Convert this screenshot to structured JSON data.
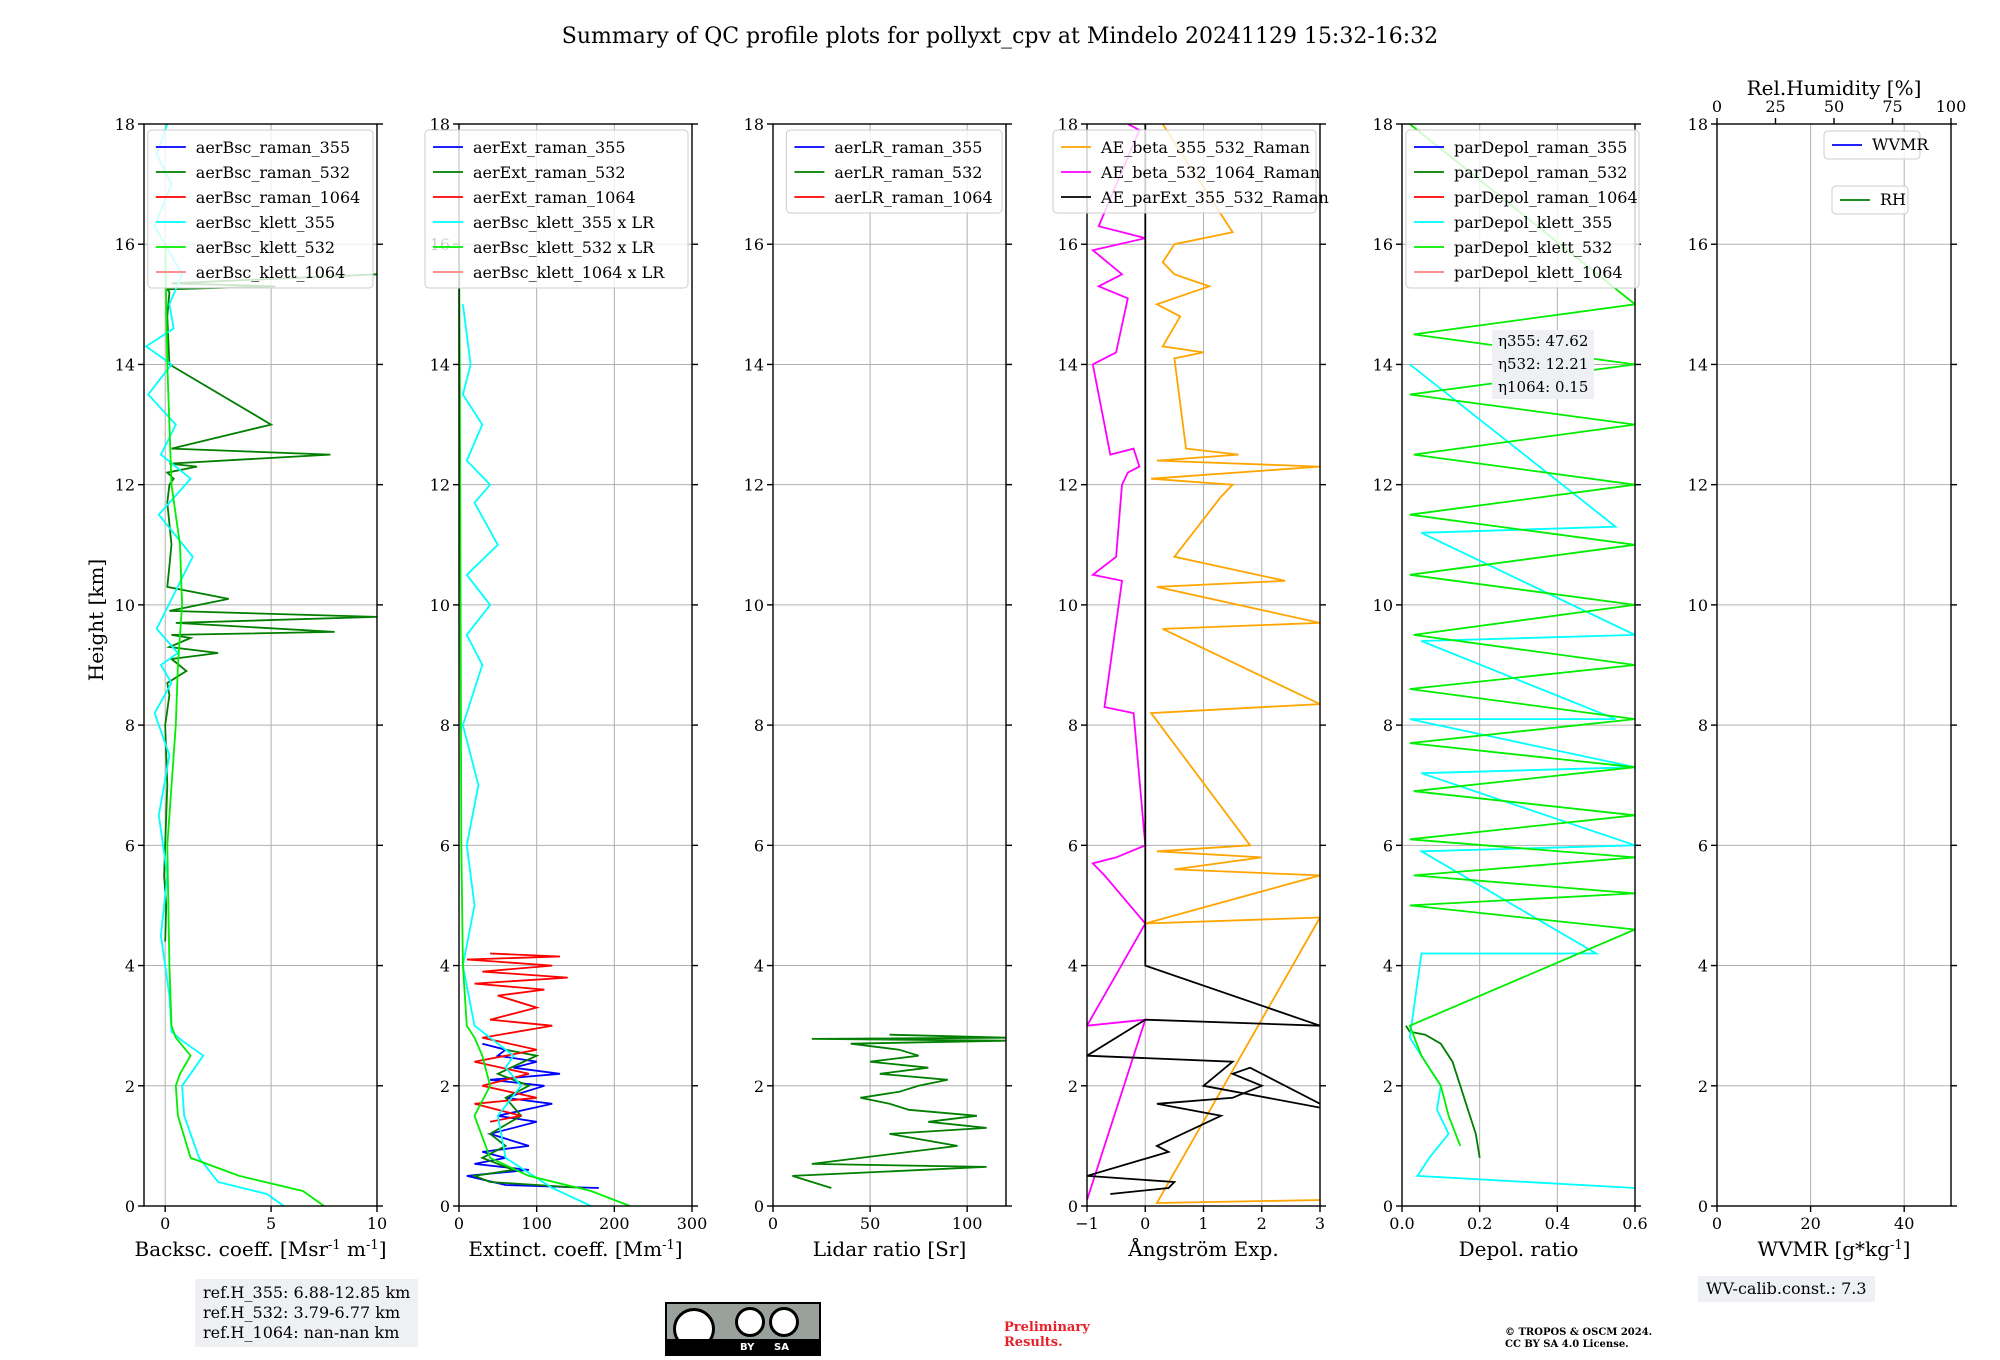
{
  "title": "Summary of QC profile plots for pollyxt_cpv at Mindelo 20241129 15:32-16:32",
  "chart_data": [
    {
      "type": "line",
      "id": "backscatter",
      "xlabel": "Backsc. coeff. [Msr$^{-1}$ m$^{-1}$]",
      "ylabel": "Height [km]",
      "xlim": [
        -1,
        10
      ],
      "ylim": [
        0,
        18
      ],
      "xticks": [
        "0",
        "5",
        "10"
      ],
      "yticks": [
        "0",
        "2",
        "4",
        "6",
        "8",
        "10",
        "12",
        "14",
        "16",
        "18"
      ],
      "grid": true,
      "legend_position": "top-right",
      "series": [
        {
          "name": "aerBsc_raman_355",
          "color": "#0000ff",
          "x": [],
          "y": []
        },
        {
          "name": "aerBsc_raman_532",
          "color": "#007f00",
          "x": [
            0,
            0.05,
            -0.05,
            0.1,
            0,
            0.2,
            0.1,
            1,
            0.3,
            2.5,
            0.2,
            1.2,
            0.3,
            8,
            0.5,
            10,
            0.2,
            3,
            0.1,
            0.3,
            0.1,
            0.2,
            0.4,
            0.1,
            1.5,
            0.2,
            7.8,
            0.3,
            5,
            0.2,
            0.1,
            0.2,
            0.1,
            5.2,
            0.3,
            10
          ],
          "y": [
            4.4,
            5.0,
            5.5,
            7.0,
            8.0,
            8.5,
            8.7,
            8.9,
            9.1,
            9.2,
            9.3,
            9.45,
            9.5,
            9.55,
            9.7,
            9.8,
            9.9,
            10.1,
            10.3,
            11.0,
            11.7,
            12.0,
            12.1,
            12.2,
            12.3,
            12.35,
            12.5,
            12.6,
            13.0,
            14.0,
            14.8,
            15.2,
            15.25,
            15.3,
            15.35,
            15.5
          ]
        },
        {
          "name": "aerBsc_raman_1064",
          "color": "#ff0000",
          "x": [],
          "y": []
        },
        {
          "name": "aerBsc_klett_355",
          "color": "#00ffff",
          "x": [
            5.6,
            4.8,
            2.5,
            1.6,
            0.9,
            0.8,
            1.2,
            1.8,
            0.8,
            0.3,
            0.2,
            -0.2,
            0.1,
            -0.3,
            0.2,
            -0.5,
            0.3,
            -0.2,
            0.6,
            -0.4,
            1.3,
            -0.3,
            1.2,
            -0.2,
            0.5,
            -0.8,
            0.3,
            -0.9,
            0.4,
            0.2,
            0.8,
            -0.5,
            0.3,
            -0.4,
            0.1
          ],
          "y": [
            0.0,
            0.2,
            0.4,
            0.8,
            1.5,
            2.0,
            2.2,
            2.5,
            2.75,
            2.9,
            3.5,
            4.5,
            5.5,
            6.5,
            7.5,
            8.2,
            8.7,
            9.0,
            9.2,
            9.6,
            10.8,
            11.5,
            12.1,
            12.5,
            13.0,
            13.5,
            14.0,
            14.3,
            14.6,
            15.0,
            15.5,
            16.3,
            17.0,
            17.5,
            18.0
          ]
        },
        {
          "name": "aerBsc_klett_532",
          "color": "#00ee00",
          "x": [
            7.5,
            6.5,
            3.5,
            1.2,
            0.6,
            0.5,
            0.7,
            1.2,
            0.5,
            0.3,
            0.2,
            0.1,
            0.5,
            0.6,
            0.8,
            0.7,
            0.3,
            0.1,
            0.0
          ],
          "y": [
            0.0,
            0.25,
            0.5,
            0.8,
            1.5,
            2.0,
            2.2,
            2.5,
            2.8,
            3.0,
            4.0,
            6.0,
            8.0,
            9.0,
            10.0,
            11.0,
            12.0,
            14.0,
            16.0
          ]
        },
        {
          "name": "aerBsc_klett_1064",
          "color": "#ff7f7f",
          "x": [],
          "y": []
        }
      ],
      "annotations": [
        "ref.H_355: 6.88-12.85 km",
        "ref.H_532: 3.79-6.77 km",
        "ref.H_1064: nan-nan km"
      ]
    },
    {
      "type": "line",
      "id": "extinction",
      "xlabel": "Extinct. coeff. [Mm$^{-1}$]",
      "xlim": [
        0,
        300
      ],
      "ylim": [
        0,
        18
      ],
      "xticks": [
        "0",
        "100",
        "200",
        "300"
      ],
      "yticks": [
        "0",
        "2",
        "4",
        "6",
        "8",
        "10",
        "12",
        "14",
        "16",
        "18"
      ],
      "grid": true,
      "legend_position": "top-right",
      "series": [
        {
          "name": "aerExt_raman_355",
          "color": "#0000ff",
          "x": [
            180,
            60,
            10,
            90,
            20,
            60,
            30,
            90,
            40,
            100,
            50,
            120,
            60,
            110,
            40,
            130,
            70,
            100,
            50,
            60,
            30
          ],
          "y": [
            0.3,
            0.35,
            0.5,
            0.6,
            0.7,
            0.8,
            0.9,
            1.0,
            1.2,
            1.4,
            1.5,
            1.7,
            1.8,
            2.0,
            2.1,
            2.2,
            2.3,
            2.4,
            2.5,
            2.6,
            2.7
          ]
        },
        {
          "name": "aerExt_raman_532",
          "color": "#007f00",
          "x": [
            160,
            40,
            20,
            70,
            30,
            60,
            40,
            80,
            60,
            90,
            50,
            100,
            60
          ],
          "y": [
            0.3,
            0.4,
            0.5,
            0.6,
            0.8,
            1.0,
            1.2,
            1.5,
            1.8,
            2.0,
            2.2,
            2.5,
            2.6
          ]
        },
        {
          "name": "aerExt_raman_1064",
          "color": "#ff0000",
          "x": [
            40,
            80,
            20,
            100,
            30,
            90,
            20,
            100,
            30,
            120,
            40,
            100,
            50,
            110,
            20,
            140,
            30,
            120,
            10,
            130,
            40
          ],
          "y": [
            1.4,
            1.5,
            1.7,
            1.8,
            2.0,
            2.2,
            2.4,
            2.6,
            2.8,
            3.0,
            3.1,
            3.3,
            3.5,
            3.6,
            3.7,
            3.8,
            3.9,
            4.0,
            4.1,
            4.15,
            4.2
          ]
        },
        {
          "name": "aerBsc_klett_355 x LR",
          "color": "#00ffff",
          "x": [
            170,
            120,
            60,
            50,
            80,
            60,
            70,
            40,
            20,
            5,
            20,
            10,
            25,
            5,
            30,
            10,
            40,
            10,
            50,
            20,
            40,
            10,
            30,
            5,
            15,
            5
          ],
          "y": [
            0.0,
            0.3,
            0.8,
            1.5,
            2.0,
            2.3,
            2.5,
            2.8,
            3.0,
            4.0,
            5.0,
            6.0,
            7.0,
            8.0,
            9.0,
            9.5,
            10.0,
            10.5,
            11.0,
            11.7,
            12.0,
            12.4,
            13.0,
            13.5,
            14.0,
            15.0
          ]
        },
        {
          "name": "aerBsc_klett_532 x LR",
          "color": "#00ee00",
          "x": [
            220,
            170,
            90,
            40,
            20,
            40,
            30,
            20,
            10,
            5,
            3,
            2,
            1,
            0
          ],
          "y": [
            0.0,
            0.25,
            0.5,
            0.8,
            1.5,
            2.0,
            2.5,
            2.8,
            3.0,
            4.0,
            6.0,
            10.0,
            14.0,
            16.0
          ]
        },
        {
          "name": "aerBsc_klett_1064 x LR",
          "color": "#ff7f7f",
          "x": [],
          "y": []
        }
      ]
    },
    {
      "type": "line",
      "id": "lidar-ratio",
      "xlabel": "Lidar ratio [Sr]",
      "xlim": [
        0,
        120
      ],
      "ylim": [
        0,
        18
      ],
      "xticks": [
        "0",
        "50",
        "100"
      ],
      "yticks": [
        "0",
        "2",
        "4",
        "6",
        "8",
        "10",
        "12",
        "14",
        "16",
        "18"
      ],
      "grid": true,
      "legend_position": "top-right",
      "series": [
        {
          "name": "aerLR_raman_355",
          "color": "#0000ff",
          "x": [],
          "y": []
        },
        {
          "name": "aerLR_raman_532",
          "color": "#007f00",
          "x": [
            30,
            10,
            110,
            20,
            95,
            60,
            110,
            80,
            105,
            70,
            60,
            45,
            65,
            75,
            90,
            55,
            80,
            50,
            75,
            65,
            40,
            120,
            20,
            120,
            60
          ],
          "y": [
            0.3,
            0.5,
            0.65,
            0.7,
            1.0,
            1.2,
            1.3,
            1.4,
            1.5,
            1.6,
            1.7,
            1.8,
            1.9,
            2.0,
            2.1,
            2.2,
            2.3,
            2.4,
            2.5,
            2.6,
            2.7,
            2.75,
            2.78,
            2.8,
            2.85
          ]
        },
        {
          "name": "aerLR_raman_1064",
          "color": "#ff0000",
          "x": [],
          "y": []
        }
      ]
    },
    {
      "type": "line",
      "id": "angstrom",
      "xlabel": "Ångström Exp.",
      "xlim": [
        -1,
        3
      ],
      "ylim": [
        0,
        18
      ],
      "xticks": [
        "−1",
        "0",
        "1",
        "2",
        "3"
      ],
      "yticks": [
        "0",
        "2",
        "4",
        "6",
        "8",
        "10",
        "12",
        "14",
        "16",
        "18"
      ],
      "grid": true,
      "legend_position": "top-right",
      "series": [
        {
          "name": "AE_beta_355_532_Raman",
          "color": "#ffa500",
          "x": [
            3,
            0.2,
            3,
            0,
            3,
            0.5,
            2,
            0.2,
            1.8,
            0.1,
            3,
            0.3,
            3,
            0.2,
            2.4,
            0.5,
            1.3,
            1.5,
            0.1,
            3,
            0.2,
            1.6,
            0.7,
            0.5,
            1.0,
            0.3,
            0.6,
            0.2,
            1.1,
            0.5,
            0.3,
            0.5,
            1.5,
            0.3
          ],
          "y": [
            0.1,
            0.05,
            4.8,
            4.7,
            5.5,
            5.6,
            5.8,
            5.9,
            6.0,
            8.2,
            8.35,
            9.6,
            9.7,
            10.3,
            10.4,
            10.8,
            11.8,
            12.0,
            12.1,
            12.3,
            12.4,
            12.5,
            12.6,
            14.1,
            14.2,
            14.3,
            14.8,
            15.0,
            15.3,
            15.5,
            15.7,
            16.0,
            16.2,
            18.0
          ]
        },
        {
          "name": "AE_beta_532_1064_Raman",
          "color": "#ff00ff",
          "x": [
            -1,
            0,
            -1,
            0,
            0,
            -0.7,
            -0.9,
            -0.5,
            0,
            -0.2,
            -0.7,
            -0.4,
            -0.9,
            -0.5,
            -0.4,
            -0.3,
            -0.1,
            -0.2,
            -0.6,
            -0.9,
            -0.5,
            -0.3,
            -0.8,
            -0.4,
            -0.9,
            0,
            -0.8,
            -0.1,
            -0.3
          ],
          "y": [
            0.1,
            3.1,
            3.0,
            4.7,
            4.7,
            5.5,
            5.7,
            5.8,
            6.0,
            8.2,
            8.3,
            10.4,
            10.5,
            10.8,
            12.0,
            12.2,
            12.3,
            12.6,
            12.5,
            14.0,
            14.2,
            15.1,
            15.3,
            15.5,
            15.9,
            16.1,
            16.3,
            17.9,
            18.0
          ]
        },
        {
          "name": "AE_parExt_355_532_Raman",
          "color": "#000000",
          "x": [
            -0.6,
            0.4,
            0.5,
            -1,
            0.4,
            0.2,
            1.3,
            0.2,
            1.5,
            2.0,
            1.5,
            1.8,
            3.2,
            1.0,
            1.5,
            -1,
            0,
            3,
            0,
            0
          ],
          "y": [
            0.2,
            0.3,
            0.4,
            0.5,
            0.9,
            1.0,
            1.5,
            1.7,
            1.8,
            2.0,
            2.2,
            2.3,
            1.6,
            2.0,
            2.4,
            2.5,
            3.1,
            3.0,
            4.0,
            18.0
          ]
        }
      ]
    },
    {
      "type": "line",
      "id": "depol",
      "xlabel": "Depol. ratio",
      "xlim": [
        0,
        0.6
      ],
      "ylim": [
        0,
        18
      ],
      "xticks": [
        "0.0",
        "0.2",
        "0.4",
        "0.6"
      ],
      "yticks": [
        "0",
        "2",
        "4",
        "6",
        "8",
        "10",
        "12",
        "14",
        "16",
        "18"
      ],
      "grid": true,
      "legend_position": "top-left",
      "series": [
        {
          "name": "parDepol_raman_355",
          "color": "#0000ff",
          "x": [],
          "y": []
        },
        {
          "name": "parDepol_raman_532",
          "color": "#007f00",
          "x": [
            0.2,
            0.19,
            0.17,
            0.15,
            0.13,
            0.1,
            0.06,
            0.02,
            0.01
          ],
          "y": [
            0.8,
            1.2,
            1.6,
            2.0,
            2.4,
            2.7,
            2.85,
            2.9,
            3.0
          ]
        },
        {
          "name": "parDepol_raman_1064",
          "color": "#ff0000",
          "x": [],
          "y": []
        },
        {
          "name": "parDepol_klett_355",
          "color": "#00ffff",
          "x": [
            0.6,
            0.04,
            0.07,
            0.12,
            0.09,
            0.1,
            0.05,
            0.02,
            0.05,
            0.5,
            0.05,
            0.6,
            0.05,
            0.6,
            0.02,
            0.55,
            0.05,
            0.6,
            0.05,
            0.55,
            0.02
          ],
          "y": [
            0.3,
            0.5,
            0.8,
            1.2,
            1.6,
            2.0,
            2.5,
            2.8,
            4.2,
            4.2,
            5.9,
            6.0,
            7.2,
            7.3,
            8.1,
            8.1,
            9.4,
            9.5,
            11.2,
            11.3,
            14.0
          ]
        },
        {
          "name": "parDepol_klett_532",
          "color": "#00ee00",
          "x": [
            0.15,
            0.12,
            0.1,
            0.05,
            0.02,
            0.6,
            0.02,
            0.6,
            0.03,
            0.6,
            0.02,
            0.6,
            0.03,
            0.6,
            0.02,
            0.6,
            0.02,
            0.6,
            0.03,
            0.6,
            0.02,
            0.6,
            0.02,
            0.6,
            0.03,
            0.6,
            0.02,
            0.6,
            0.03,
            0.6,
            0.02
          ],
          "y": [
            1.0,
            1.5,
            2.0,
            2.5,
            3.0,
            4.6,
            5.0,
            5.2,
            5.5,
            5.8,
            6.1,
            6.5,
            6.9,
            7.3,
            7.7,
            8.1,
            8.6,
            9.0,
            9.5,
            10.0,
            10.5,
            11.0,
            11.5,
            12.0,
            12.5,
            13.0,
            13.5,
            14.0,
            14.5,
            15.0,
            18.0
          ]
        },
        {
          "name": "parDepol_klett_1064",
          "color": "#ff7f7f",
          "x": [],
          "y": []
        }
      ],
      "annotations": [
        "η355: 47.62",
        "η532: 12.21",
        "η1064: 0.15"
      ]
    },
    {
      "type": "line",
      "id": "wvmr",
      "xlabel": "WVMR [g*kg$^{-1}$]",
      "xlim": [
        0,
        50
      ],
      "ylim": [
        0,
        18
      ],
      "xticks": [
        "0",
        "20",
        "40"
      ],
      "x2label": "Rel.Humidity [%]",
      "x2lim": [
        0,
        100
      ],
      "x2ticks": [
        "0",
        "25",
        "50",
        "75",
        "100"
      ],
      "yticks": [
        "0",
        "2",
        "4",
        "6",
        "8",
        "10",
        "12",
        "14",
        "16",
        "18"
      ],
      "grid": true,
      "legend_position": "top-right",
      "series": [
        {
          "name": "WVMR",
          "color": "#0000ff",
          "x": [],
          "y": []
        },
        {
          "name": "RH",
          "color": "#007f00",
          "x": [],
          "y": []
        }
      ],
      "annotations": [
        "WV-calib.const.: 7.3"
      ]
    }
  ],
  "footer": {
    "license_badge": [
      "BY",
      "SA"
    ],
    "preliminary": [
      "Preliminary",
      "Results."
    ],
    "copyright": [
      "© TROPOS & OSCM 2024.",
      "CC BY SA 4.0 License."
    ]
  }
}
